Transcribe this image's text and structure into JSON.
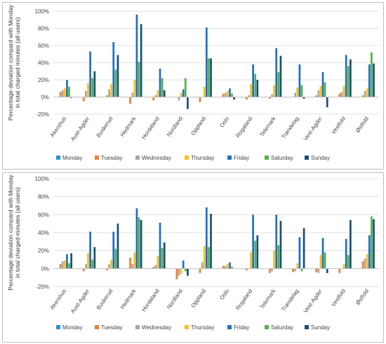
{
  "colors": {
    "Monday": "#2E8FD6",
    "Tuesday": "#F07F32",
    "Wednesday": "#A6A6A6",
    "Thursday": "#FDBE18",
    "Friday": "#1F6FC5",
    "Saturday": "#55B046",
    "Sunday": "#1B4E78",
    "grid": "#d9d9d9",
    "axis": "#bfbfbf",
    "panel_border": "#bfbfbf"
  },
  "chart_data": [
    {
      "type": "bar",
      "ylabel": "Percentage deviation compard with Monday in total charged minutes (all users)",
      "ylim": [
        -20,
        100
      ],
      "yticks": [
        "-20%",
        "0%",
        "20%",
        "40%",
        "60%",
        "80%",
        "100%"
      ],
      "grid": true,
      "legend_position": "bottom",
      "categories": [
        "Akershus",
        "Aust-Agder",
        "Buskerud",
        "Hedmark",
        "Hordaland",
        "Nordland",
        "Oppland",
        "Oslo",
        "Rogaland",
        "Telemark",
        "Trøndelag",
        "Vest-Agder",
        "Vestfold",
        "Østfold"
      ],
      "series": [
        {
          "name": "Monday",
          "values": [
            0,
            0,
            0,
            0,
            0,
            0,
            0,
            0,
            0,
            0,
            0,
            0,
            0,
            0
          ]
        },
        {
          "name": "Tuesday",
          "values": [
            6,
            -5,
            2,
            -8,
            -4,
            0,
            -6,
            4,
            -3,
            -2,
            0,
            2,
            4,
            2
          ]
        },
        {
          "name": "Wednesday",
          "values": [
            8,
            7,
            9,
            5,
            2,
            -4,
            0,
            5,
            2,
            3,
            5,
            8,
            6,
            7
          ]
        },
        {
          "name": "Thursday",
          "values": [
            10,
            16,
            15,
            20,
            8,
            5,
            12,
            7,
            15,
            14,
            11,
            13,
            13,
            10
          ]
        },
        {
          "name": "Friday",
          "values": [
            20,
            53,
            64,
            96,
            33,
            9,
            81,
            10,
            38,
            57,
            38,
            29,
            49,
            38
          ]
        },
        {
          "name": "Saturday",
          "values": [
            12,
            22,
            32,
            41,
            22,
            22,
            45,
            4,
            27,
            29,
            14,
            17,
            36,
            52
          ]
        },
        {
          "name": "Sunday",
          "values": [
            -1,
            30,
            49,
            85,
            8,
            -14,
            45,
            -3,
            20,
            48,
            -2,
            -12,
            44,
            39
          ]
        }
      ]
    },
    {
      "type": "bar",
      "ylabel": "Percentage deviation compard with Monday in total charged minutes (all users)",
      "ylim": [
        -20,
        100
      ],
      "yticks": [
        "-20%",
        "0%",
        "20%",
        "40%",
        "60%",
        "80%",
        "100%"
      ],
      "grid": true,
      "legend_position": "bottom",
      "categories": [
        "Akershus",
        "Aust-Agder",
        "Buskerud",
        "Hedmark",
        "Hordaland",
        "Nordland",
        "Oppland",
        "Oslo",
        "Rogaland",
        "Telemark",
        "Trøndelag",
        "Vest-Agder",
        "Vestfold",
        "Østfold"
      ],
      "series": [
        {
          "name": "Monday",
          "values": [
            0,
            0,
            0,
            0,
            0,
            0,
            0,
            0,
            0,
            0,
            0,
            0,
            0,
            0
          ]
        },
        {
          "name": "Tuesday",
          "values": [
            5,
            -3,
            -2,
            12,
            2,
            -12,
            -5,
            3,
            -2,
            -5,
            -4,
            -4,
            -5,
            8
          ]
        },
        {
          "name": "Wednesday",
          "values": [
            8,
            5,
            5,
            5,
            4,
            -8,
            7,
            3,
            0,
            -3,
            -3,
            -5,
            0,
            11
          ]
        },
        {
          "name": "Thursday",
          "values": [
            9,
            17,
            10,
            18,
            14,
            -6,
            25,
            5,
            18,
            20,
            6,
            15,
            5,
            16
          ]
        },
        {
          "name": "Friday",
          "values": [
            16,
            41,
            41,
            67,
            51,
            9,
            68,
            7,
            60,
            60,
            35,
            34,
            33,
            37
          ]
        },
        {
          "name": "Saturday",
          "values": [
            6,
            10,
            22,
            57,
            23,
            -3,
            24,
            2,
            31,
            26,
            -3,
            18,
            15,
            58
          ]
        },
        {
          "name": "Sunday",
          "values": [
            17,
            24,
            50,
            54,
            29,
            -8,
            61,
            0,
            37,
            53,
            45,
            -5,
            54,
            55
          ]
        }
      ]
    }
  ]
}
